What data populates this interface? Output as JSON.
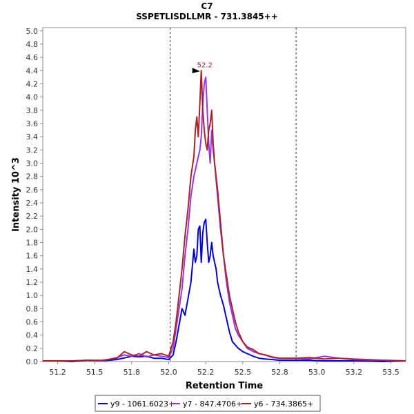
{
  "chart_data": {
    "type": "line",
    "title": "C7",
    "subtitle": "SSPETLISDLLMR - 731.3845++",
    "xlabel": "Retention Time",
    "ylabel": "Intensity 10^3",
    "xlim": [
      51.1,
      53.55
    ],
    "ylim": [
      0,
      5.05
    ],
    "x_ticks": [
      "51.2",
      "51.5",
      "51.8",
      "52.0",
      "52.2",
      "52.5",
      "52.8",
      "53.0",
      "53.2",
      "53.5"
    ],
    "y_ticks": [
      "0.0",
      "0.2",
      "0.4",
      "0.6",
      "0.8",
      "1.0",
      "1.2",
      "1.4",
      "1.6",
      "1.8",
      "2.0",
      "2.2",
      "2.4",
      "2.6",
      "2.8",
      "3.0",
      "3.2",
      "3.4",
      "3.6",
      "3.8",
      "4.0",
      "4.2",
      "4.4",
      "4.6",
      "4.8",
      "5.0"
    ],
    "integration_bounds": [
      51.96,
      52.81
    ],
    "peak_annotation": {
      "x": 52.17,
      "y": 4.4,
      "label": "52.2"
    },
    "series": [
      {
        "name": "y9 - 1061.6023+",
        "color": "#0000dd",
        "x": [
          51.1,
          51.2,
          51.3,
          51.4,
          51.5,
          51.6,
          51.7,
          51.75,
          51.8,
          51.85,
          51.9,
          51.95,
          51.98,
          52.0,
          52.02,
          52.04,
          52.06,
          52.08,
          52.1,
          52.12,
          52.13,
          52.14,
          52.15,
          52.16,
          52.17,
          52.18,
          52.19,
          52.2,
          52.21,
          52.22,
          52.23,
          52.24,
          52.25,
          52.26,
          52.27,
          52.28,
          52.3,
          52.32,
          52.34,
          52.36,
          52.38,
          52.4,
          52.42,
          52.45,
          52.48,
          52.52,
          52.56,
          52.6,
          52.65,
          52.7,
          52.8,
          52.9,
          53.0,
          53.2,
          53.4,
          53.55
        ],
        "values": [
          0.01,
          0.01,
          0.0,
          0.02,
          0.01,
          0.03,
          0.08,
          0.07,
          0.08,
          0.05,
          0.05,
          0.03,
          0.1,
          0.3,
          0.55,
          0.8,
          0.7,
          0.95,
          1.2,
          1.7,
          1.5,
          1.6,
          2.0,
          2.05,
          1.5,
          1.95,
          2.1,
          2.15,
          1.8,
          1.5,
          1.6,
          1.8,
          1.6,
          1.5,
          1.4,
          1.2,
          1.0,
          0.85,
          0.65,
          0.45,
          0.3,
          0.25,
          0.2,
          0.15,
          0.12,
          0.08,
          0.05,
          0.04,
          0.03,
          0.02,
          0.02,
          0.02,
          0.01,
          0.01,
          0.0,
          0.01
        ]
      },
      {
        "name": "y7 - 847.4706+",
        "color": "#9933ee",
        "x": [
          51.1,
          51.2,
          51.3,
          51.4,
          51.5,
          51.6,
          51.65,
          51.7,
          51.75,
          51.8,
          51.85,
          51.9,
          51.95,
          51.98,
          52.0,
          52.02,
          52.04,
          52.06,
          52.08,
          52.1,
          52.12,
          52.14,
          52.15,
          52.16,
          52.17,
          52.18,
          52.19,
          52.2,
          52.21,
          52.22,
          52.23,
          52.24,
          52.25,
          52.26,
          52.28,
          52.3,
          52.32,
          52.34,
          52.36,
          52.38,
          52.4,
          52.42,
          52.45,
          52.48,
          52.52,
          52.56,
          52.6,
          52.65,
          52.7,
          52.8,
          52.9,
          53.0,
          53.1,
          53.2,
          53.3,
          53.4,
          53.55
        ],
        "values": [
          0.01,
          0.01,
          0.01,
          0.02,
          0.01,
          0.06,
          0.1,
          0.08,
          0.12,
          0.07,
          0.1,
          0.08,
          0.06,
          0.2,
          0.5,
          0.8,
          1.1,
          1.6,
          2.0,
          2.5,
          2.8,
          3.0,
          3.1,
          3.2,
          3.4,
          3.9,
          4.2,
          4.3,
          3.8,
          3.3,
          3.0,
          3.5,
          3.2,
          3.0,
          2.5,
          2.0,
          1.6,
          1.2,
          0.9,
          0.7,
          0.5,
          0.4,
          0.3,
          0.2,
          0.15,
          0.12,
          0.1,
          0.06,
          0.05,
          0.05,
          0.04,
          0.08,
          0.05,
          0.04,
          0.03,
          0.02,
          0.01
        ]
      },
      {
        "name": "y6 - 734.3865+",
        "color": "#aa2222",
        "x": [
          51.1,
          51.2,
          51.3,
          51.4,
          51.5,
          51.6,
          51.65,
          51.7,
          51.75,
          51.8,
          51.85,
          51.9,
          51.95,
          51.98,
          52.0,
          52.02,
          52.04,
          52.06,
          52.08,
          52.1,
          52.12,
          52.13,
          52.14,
          52.15,
          52.16,
          52.17,
          52.18,
          52.19,
          52.2,
          52.21,
          52.22,
          52.23,
          52.24,
          52.25,
          52.26,
          52.28,
          52.3,
          52.32,
          52.34,
          52.36,
          52.38,
          52.4,
          52.42,
          52.45,
          52.48,
          52.52,
          52.56,
          52.6,
          52.65,
          52.7,
          52.8,
          52.9,
          53.0,
          53.1,
          53.2,
          53.3,
          53.4,
          53.55
        ],
        "values": [
          0.01,
          0.01,
          0.01,
          0.02,
          0.02,
          0.05,
          0.15,
          0.1,
          0.08,
          0.15,
          0.1,
          0.12,
          0.08,
          0.3,
          0.6,
          1.0,
          1.4,
          1.9,
          2.3,
          2.8,
          3.1,
          3.5,
          3.7,
          3.4,
          3.9,
          4.4,
          3.8,
          3.5,
          3.3,
          3.2,
          3.5,
          3.6,
          3.8,
          3.3,
          3.0,
          2.6,
          2.1,
          1.6,
          1.3,
          1.0,
          0.8,
          0.6,
          0.45,
          0.3,
          0.22,
          0.18,
          0.12,
          0.1,
          0.07,
          0.05,
          0.05,
          0.06,
          0.04,
          0.05,
          0.03,
          0.02,
          0.02,
          0.01
        ]
      }
    ],
    "legend": [
      {
        "label": "y9 - 1061.6023+",
        "color": "#0000dd"
      },
      {
        "label": "y7 - 847.4706+",
        "color": "#9933ee"
      },
      {
        "label": "y6 - 734.3865+",
        "color": "#aa2222"
      }
    ]
  }
}
